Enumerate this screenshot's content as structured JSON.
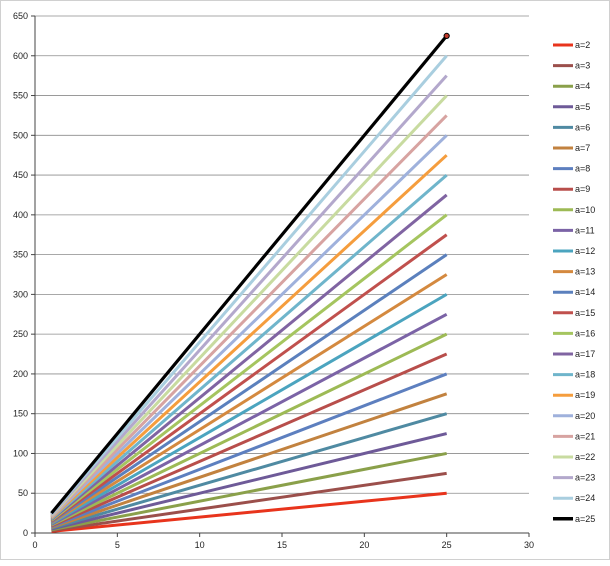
{
  "chart_data": {
    "type": "line",
    "title": "",
    "xlabel": "",
    "ylabel": "",
    "xlim": [
      0,
      30
    ],
    "ylim": [
      0,
      650
    ],
    "x_ticks": [
      0,
      5,
      10,
      15,
      20,
      25,
      30
    ],
    "y_ticks": [
      0,
      50,
      100,
      150,
      200,
      250,
      300,
      350,
      400,
      450,
      500,
      550,
      600,
      650
    ],
    "grid": "horizontal",
    "legend_position": "right",
    "x": [
      1,
      25
    ],
    "marker": {
      "series": "a=25",
      "x": 25,
      "y": 625,
      "color": "#C0392B"
    },
    "series": [
      {
        "name": "a=2",
        "values": [
          2,
          50
        ],
        "color": "#E8341C"
      },
      {
        "name": "a=3",
        "values": [
          3,
          75
        ],
        "color": "#9B4F4B"
      },
      {
        "name": "a=4",
        "values": [
          4,
          100
        ],
        "color": "#8AA04A"
      },
      {
        "name": "a=5",
        "values": [
          5,
          125
        ],
        "color": "#6E5A98"
      },
      {
        "name": "a=6",
        "values": [
          6,
          150
        ],
        "color": "#4F8AA2"
      },
      {
        "name": "a=7",
        "values": [
          7,
          175
        ],
        "color": "#C2823F"
      },
      {
        "name": "a=8",
        "values": [
          8,
          200
        ],
        "color": "#5D7FBF"
      },
      {
        "name": "a=9",
        "values": [
          9,
          225
        ],
        "color": "#B84E4B"
      },
      {
        "name": "a=10",
        "values": [
          10,
          250
        ],
        "color": "#9DBA55"
      },
      {
        "name": "a=11",
        "values": [
          11,
          275
        ],
        "color": "#7B63A6"
      },
      {
        "name": "a=12",
        "values": [
          12,
          300
        ],
        "color": "#4BA4BF"
      },
      {
        "name": "a=13",
        "values": [
          13,
          325
        ],
        "color": "#D4893F"
      },
      {
        "name": "a=14",
        "values": [
          14,
          350
        ],
        "color": "#5B80BD"
      },
      {
        "name": "a=15",
        "values": [
          15,
          375
        ],
        "color": "#C0504D"
      },
      {
        "name": "a=16",
        "values": [
          16,
          400
        ],
        "color": "#A5C55F"
      },
      {
        "name": "a=17",
        "values": [
          17,
          425
        ],
        "color": "#8064A2"
      },
      {
        "name": "a=18",
        "values": [
          18,
          450
        ],
        "color": "#6FB5CB"
      },
      {
        "name": "a=19",
        "values": [
          19,
          475
        ],
        "color": "#F59D3D"
      },
      {
        "name": "a=20",
        "values": [
          20,
          500
        ],
        "color": "#9FB1DC"
      },
      {
        "name": "a=21",
        "values": [
          21,
          525
        ],
        "color": "#D7A3A1"
      },
      {
        "name": "a=22",
        "values": [
          22,
          550
        ],
        "color": "#C8DBA0"
      },
      {
        "name": "a=23",
        "values": [
          23,
          575
        ],
        "color": "#B3A8CC"
      },
      {
        "name": "a=24",
        "values": [
          24,
          600
        ],
        "color": "#A9CEDF"
      },
      {
        "name": "a=25",
        "values": [
          25,
          625
        ],
        "color": "#000000"
      }
    ]
  }
}
